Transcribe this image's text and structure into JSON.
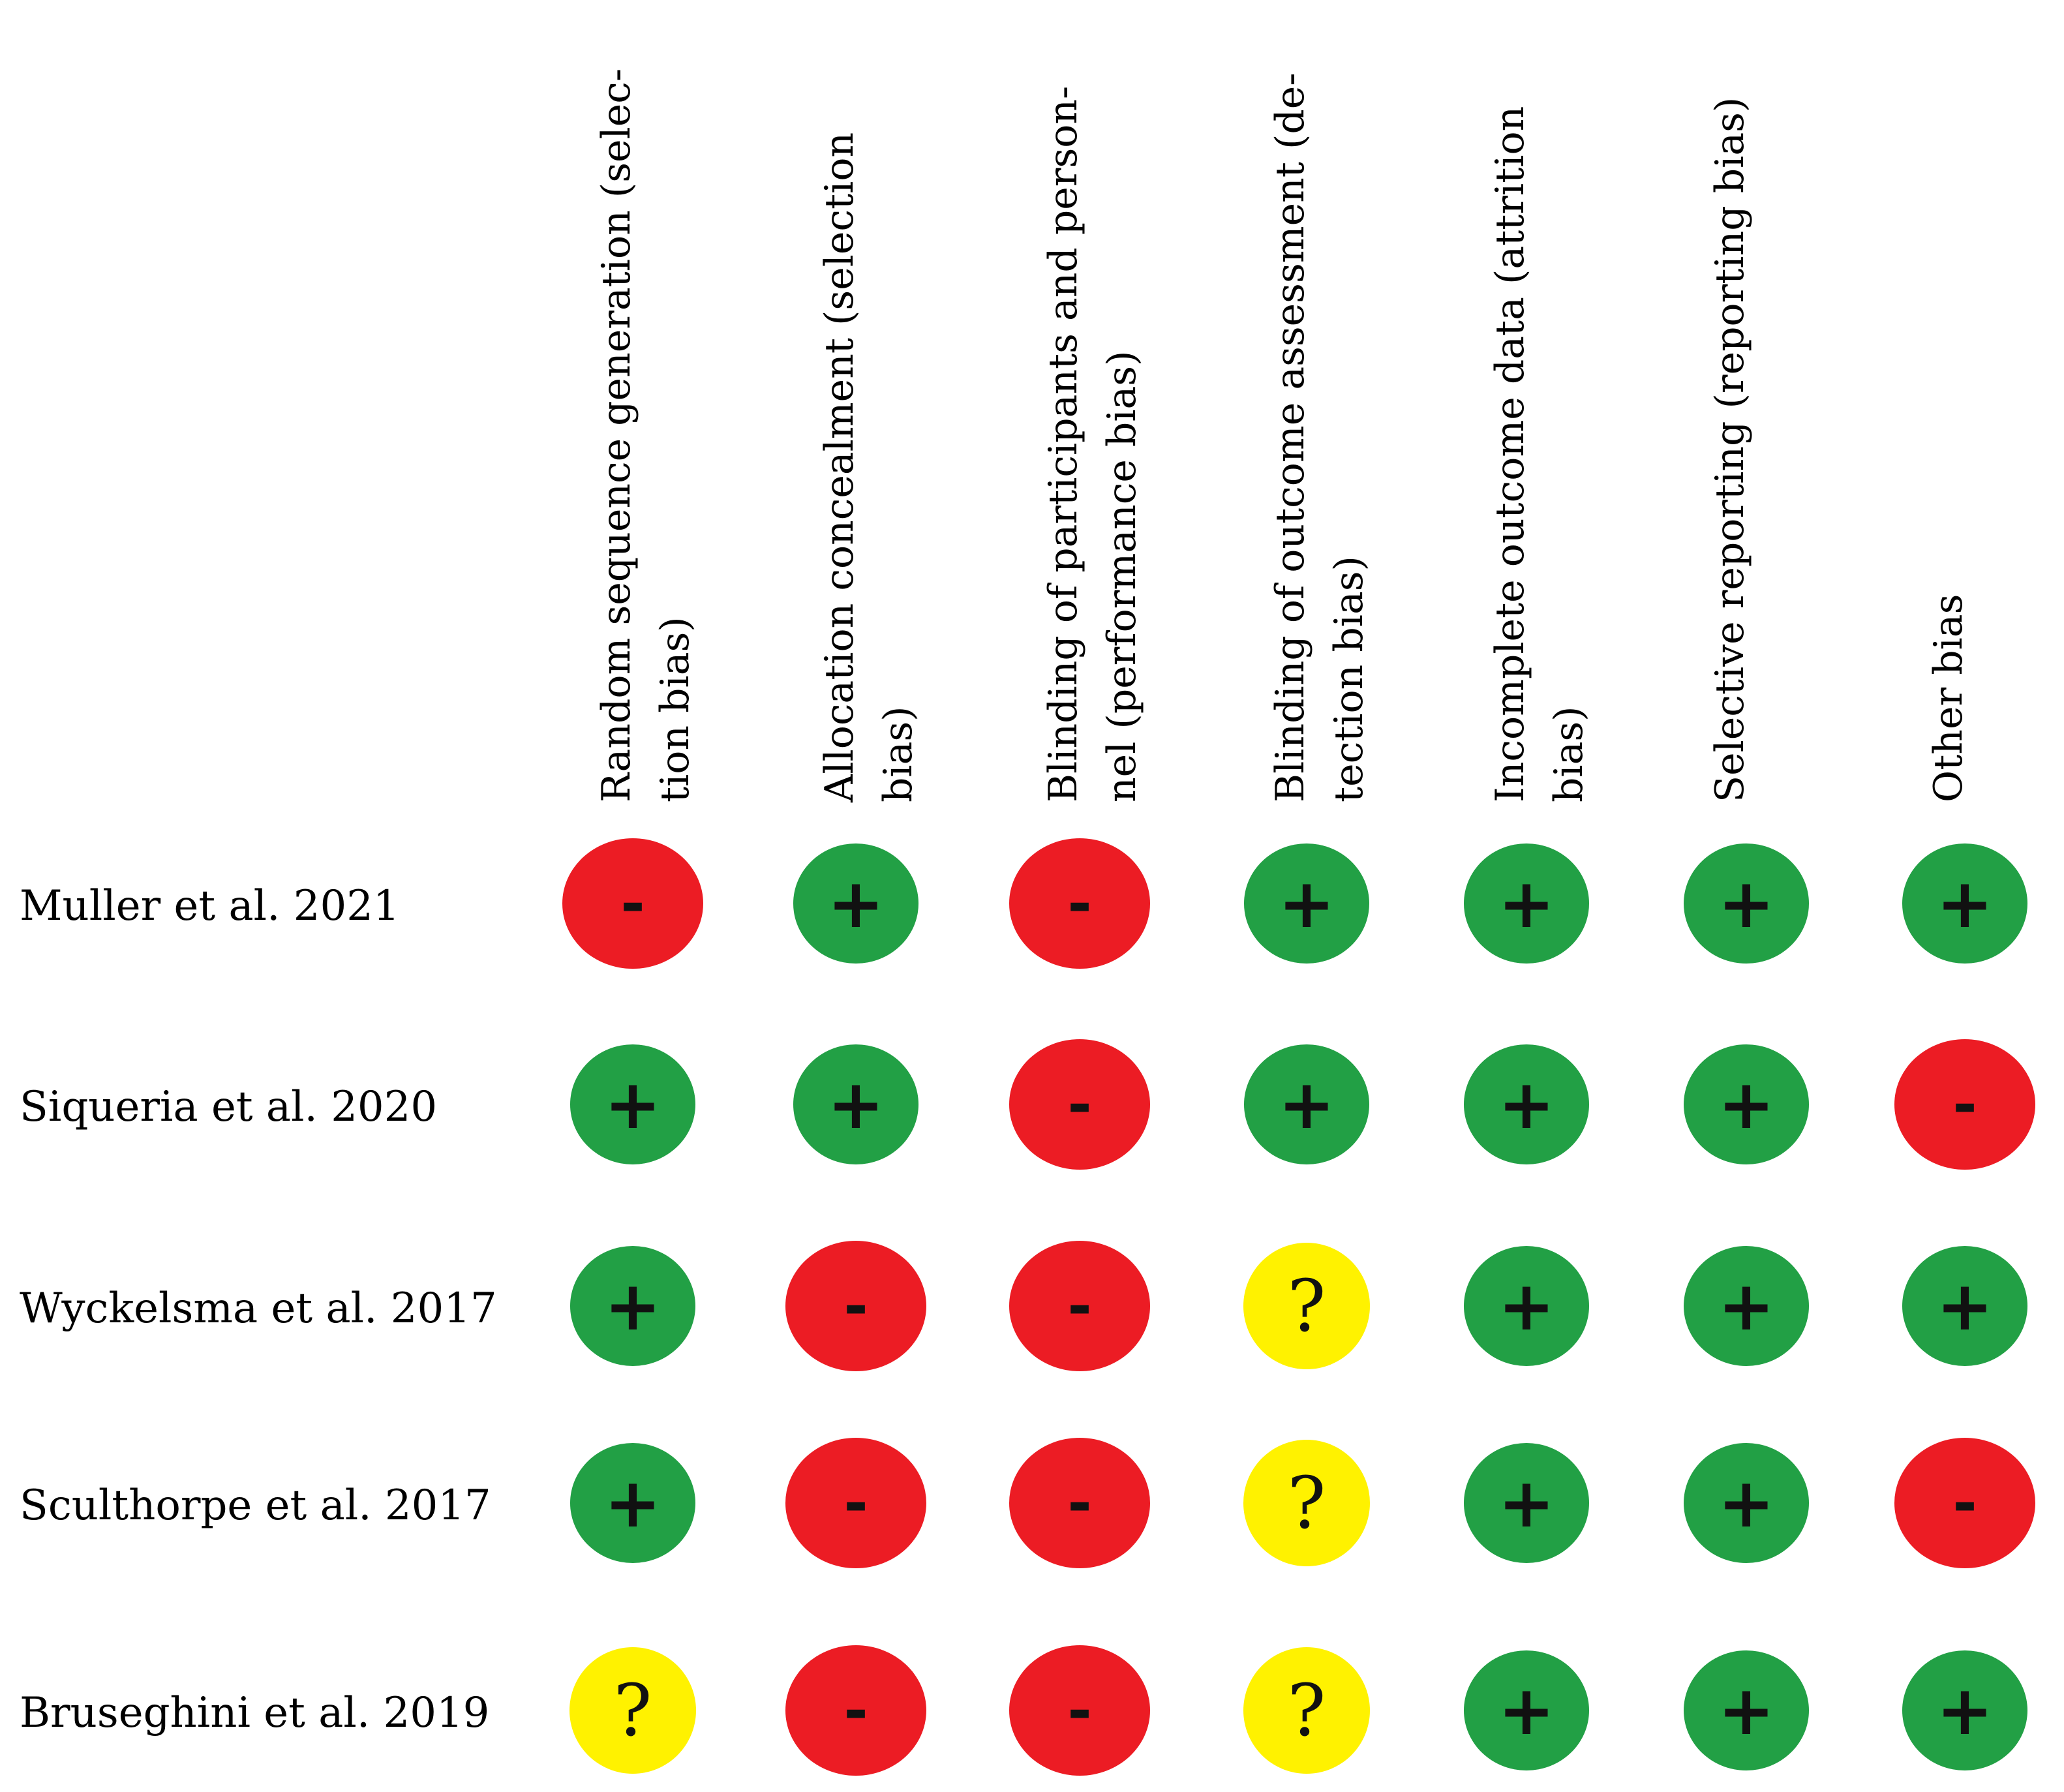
{
  "domains": [
    {
      "id": "random-sequence",
      "lines": [
        "Random sequence generation (selec-",
        "tion bias)"
      ]
    },
    {
      "id": "allocation-concealment",
      "lines": [
        "Allocation concealment (selection",
        "bias)"
      ]
    },
    {
      "id": "blinding-participants",
      "lines": [
        "Blinding of participants and person-",
        "nel (performance bias)"
      ]
    },
    {
      "id": "blinding-outcome",
      "lines": [
        "Blinding of outcome assessment (de-",
        "tection bias)"
      ]
    },
    {
      "id": "incomplete-outcome",
      "lines": [
        "Incomplete outcome data (attrition",
        "bias)"
      ]
    },
    {
      "id": "selective-reporting",
      "lines": [
        "Selective reporting (reporting bias)"
      ]
    },
    {
      "id": "other-bias",
      "lines": [
        "Other bias"
      ]
    }
  ],
  "studies": [
    {
      "label": "Muller et al. 2021",
      "ratings": [
        "high",
        "low",
        "high",
        "low",
        "low",
        "low",
        "low"
      ]
    },
    {
      "label": "Siqueria et al. 2020",
      "ratings": [
        "low",
        "low",
        "high",
        "low",
        "low",
        "low",
        "high"
      ]
    },
    {
      "label": "Wyckelsma et al. 2017",
      "ratings": [
        "low",
        "high",
        "high",
        "unclear",
        "low",
        "low",
        "low"
      ]
    },
    {
      "label": "Sculthorpe et al. 2017",
      "ratings": [
        "low",
        "high",
        "high",
        "unclear",
        "low",
        "low",
        "high"
      ]
    },
    {
      "label": "Bruseghini et al. 2019",
      "ratings": [
        "unclear",
        "high",
        "high",
        "unclear",
        "low",
        "low",
        "low"
      ]
    }
  ],
  "legend": {
    "low": {
      "symbol": "+",
      "color": "#22a045",
      "icon": "plus-icon"
    },
    "high": {
      "symbol": "-",
      "color": "#ec1c24",
      "icon": "minus-icon"
    },
    "unclear": {
      "symbol": "?",
      "color": "#fff200",
      "icon": "question-icon"
    }
  }
}
